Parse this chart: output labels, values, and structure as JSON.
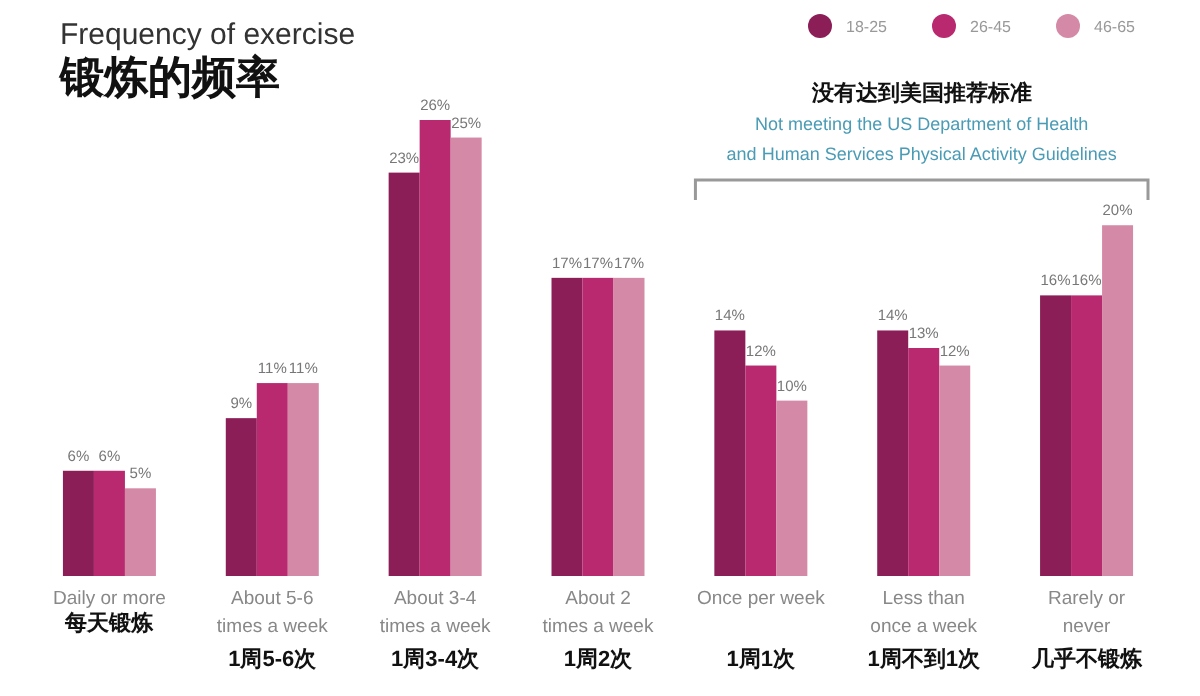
{
  "chart_data": {
    "type": "bar",
    "title": "Frequency of exercise",
    "subtitle": "锻炼的频率",
    "categories": [
      "Daily or more\n每天锻炼",
      "About 5-6\ntimes a week\n1周5-6次",
      "About 3-4\ntimes a week\n1周3-4次",
      "About 2\ntimes a week\n1周2次",
      "Once per week\n\n1周1次",
      "Less than\nonce a week\n1周不到1次",
      "Rarely or\nnever\n几乎不锻炼"
    ],
    "series": [
      {
        "name": "18-25",
        "color": "#8b1e57",
        "values": [
          6,
          9,
          23,
          17,
          14,
          14,
          16
        ],
        "value_labels": [
          "6%",
          "9%",
          "23%",
          "17%",
          "14%",
          "14%",
          "16%"
        ]
      },
      {
        "name": "26-45",
        "color": "#b8296f",
        "values": [
          6,
          11,
          26,
          17,
          12,
          13,
          16
        ],
        "value_labels": [
          "6%",
          "11%",
          "26%",
          "17%",
          "12%",
          "13%",
          "16%"
        ]
      },
      {
        "name": "46-65",
        "color": "#d48aa6",
        "values": [
          5,
          11,
          25,
          17,
          10,
          12,
          20
        ],
        "value_labels": [
          "5%",
          "11%",
          "25%",
          "17%",
          "10%",
          "12%",
          "20%"
        ]
      }
    ],
    "legend": "top right",
    "annotations": [
      "没有达到美国推荐标准",
      "Not meeting the US Department of Health\nand Human Services Physical Activity Guidelines"
    ]
  }
}
